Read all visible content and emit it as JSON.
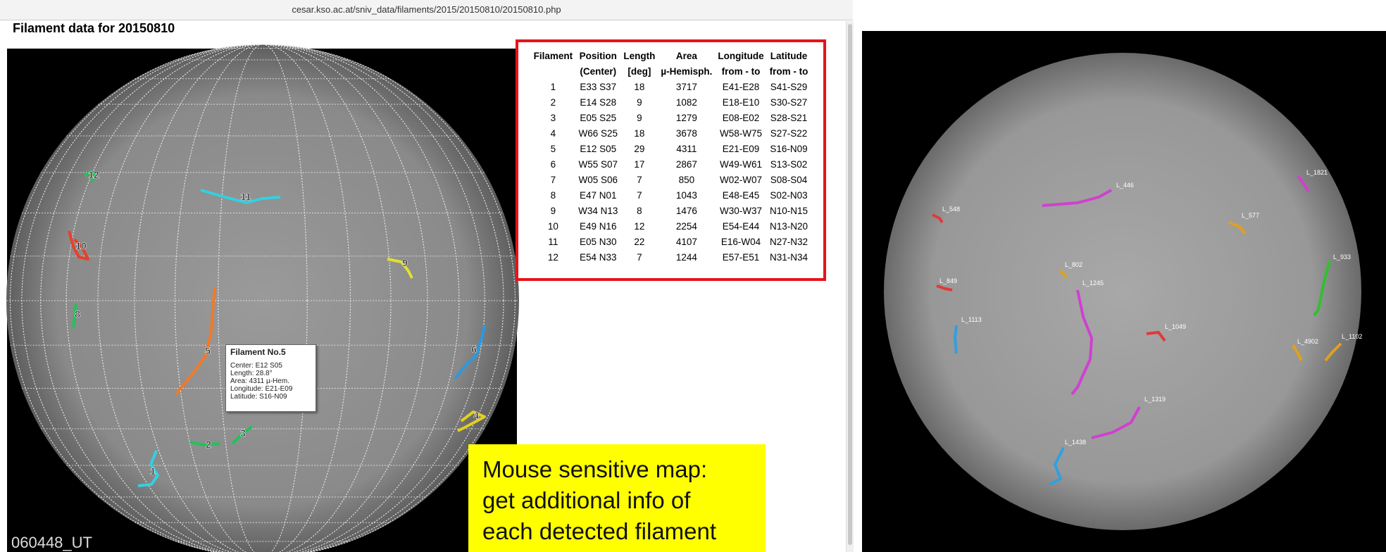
{
  "browser": {
    "url": "cesar.kso.ac.at/sniv_data/filaments/2015/20150810/20150810.php"
  },
  "page": {
    "title": "Filament data for 20150810",
    "timestamp": "060448_UT"
  },
  "table": {
    "header_top": [
      "Filament",
      "Position",
      "Length",
      "Area",
      "Longitude",
      "Latitude"
    ],
    "header_sub": [
      "(Center)",
      "[deg]",
      "µ-Hemisph.",
      "from - to",
      "from - to"
    ],
    "rows": [
      [
        1,
        "E33 S37",
        18,
        3717,
        "E41-E28",
        "S41-S29"
      ],
      [
        2,
        "E14 S28",
        9,
        1082,
        "E18-E10",
        "S30-S27"
      ],
      [
        3,
        "E05 S25",
        9,
        1279,
        "E08-E02",
        "S28-S21"
      ],
      [
        4,
        "W66 S25",
        18,
        3678,
        "W58-W75",
        "S27-S22"
      ],
      [
        5,
        "E12 S05",
        29,
        4311,
        "E21-E09",
        "S16-N09"
      ],
      [
        6,
        "W55 S07",
        17,
        2867,
        "W49-W61",
        "S13-S02"
      ],
      [
        7,
        "W05 S06",
        7,
        850,
        "W02-W07",
        "S08-S04"
      ],
      [
        8,
        "E47 N01",
        7,
        1043,
        "E48-E45",
        "S02-N03"
      ],
      [
        9,
        "W34 N13",
        8,
        1476,
        "W30-W37",
        "N10-N15"
      ],
      [
        10,
        "E49 N16",
        12,
        2254,
        "E54-E44",
        "N13-N20"
      ],
      [
        11,
        "E05 N30",
        22,
        4107,
        "E16-W04",
        "N27-N32"
      ],
      [
        12,
        "E54 N33",
        7,
        1244,
        "E57-E51",
        "N31-N34"
      ]
    ]
  },
  "tooltip": {
    "title": "Filament No.5",
    "lines": [
      "Center: E12 S05",
      "Length: 28.8°",
      "Area: 4311 µ-Hem.",
      "Longitude: E21-E09",
      "Latitude: S16-N09"
    ]
  },
  "map_labels": [
    "12",
    "11",
    "10",
    "9",
    "8",
    "5",
    "6",
    "4",
    "3",
    "2",
    "1"
  ],
  "detection_labels": [
    "L_1821",
    "L_446",
    "L_548",
    "L_577",
    "L_933",
    "L_802",
    "L_849",
    "L_1245",
    "L_1113",
    "L_1049",
    "L_4902",
    "L_1102",
    "L_1319",
    "L_1438"
  ],
  "annotation": {
    "lines": [
      "Mouse sensitive map:",
      "get additional info of",
      "each detected filament"
    ]
  }
}
